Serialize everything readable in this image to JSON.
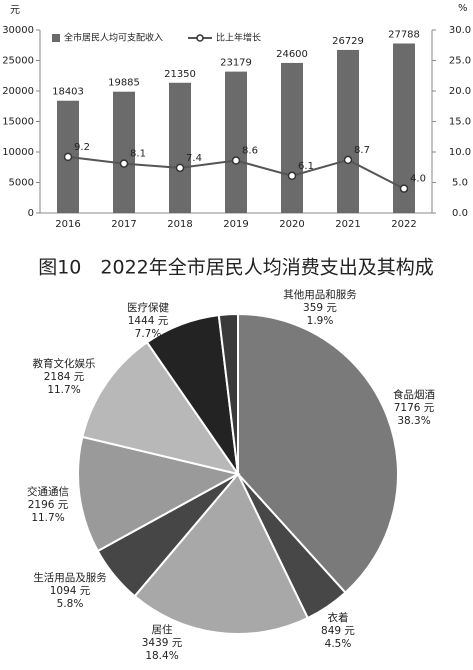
{
  "chart_data": [
    {
      "type": "bar",
      "y_label": "元",
      "y2_label": "%",
      "categories": [
        "2016",
        "2017",
        "2018",
        "2019",
        "2020",
        "2021",
        "2022"
      ],
      "series": [
        {
          "name": "全市居民人均可支配收入",
          "color": "#6b6b6b",
          "values": [
            18403,
            19885,
            21350,
            23179,
            24600,
            26729,
            27788
          ]
        },
        {
          "name": "比上年增长",
          "color": "#555555",
          "axis": "y2",
          "values": [
            9.2,
            8.1,
            7.4,
            8.6,
            6.1,
            8.7,
            4.0
          ],
          "value_labels": [
            "9.2",
            "8.1",
            "7.4",
            "8.6",
            "6.1",
            "8.7",
            "4.0"
          ]
        }
      ],
      "ylim": [
        0,
        30000
      ],
      "yticks": [
        0,
        5000,
        10000,
        15000,
        20000,
        25000,
        30000
      ],
      "y2lim": [
        0,
        30
      ],
      "y2ticks": [
        {
          "value": 0,
          "label": "0.0"
        },
        {
          "value": 5,
          "label": "5.0"
        },
        {
          "value": 10,
          "label": "10.0"
        },
        {
          "value": 15,
          "label": "15.0"
        },
        {
          "value": 20,
          "label": "20.0"
        },
        {
          "value": 25,
          "label": "25.0"
        },
        {
          "value": 30,
          "label": "30.0"
        }
      ],
      "legend": "top",
      "grid": false
    },
    {
      "type": "pie",
      "title": "图10　2022年全市居民人均消费支出及其构成",
      "categories": [
        "食品烟酒",
        "衣着",
        "居住",
        "生活用品及服务",
        "交通通信",
        "教育文化娱乐",
        "医疗保健",
        "其他用品和服务"
      ],
      "values": [
        7176,
        849,
        3439,
        1094,
        2196,
        2184,
        1444,
        359
      ],
      "value_labels": [
        "7176 元",
        "849 元",
        "3439 元",
        "1094 元",
        "2196 元",
        "2184 元",
        "1444 元",
        "359 元"
      ],
      "percents": [
        38.3,
        4.5,
        18.4,
        5.8,
        11.7,
        11.7,
        7.7,
        1.9
      ],
      "percent_labels": [
        "38.3%",
        "4.5%",
        "18.4%",
        "5.8%",
        "11.7%",
        "11.7%",
        "7.7%",
        "1.9%"
      ],
      "colors": [
        "#7a7a7a",
        "#474747",
        "#a8a8a8",
        "#464646",
        "#9a9a9a",
        "#b8b8b8",
        "#232323",
        "#3a3a3a"
      ]
    }
  ]
}
